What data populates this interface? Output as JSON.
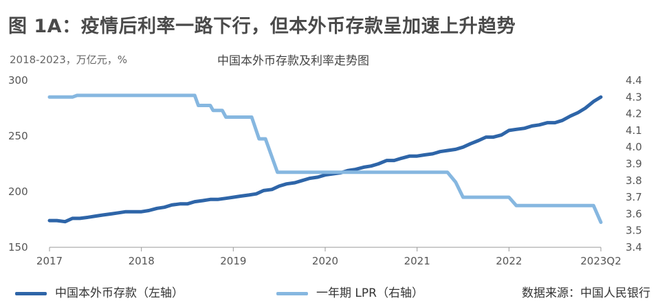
{
  "header": {
    "title": "图 1A：疫情后利率一路下行，但本外币存款呈加速上升趋势",
    "unit_note": "2018-2023，万亿元，%"
  },
  "chart_data": {
    "type": "line",
    "title": "中国本外币存款及利率走势图",
    "x_labels": [
      "2017",
      "2018",
      "2019",
      "2020",
      "2021",
      "2022",
      "2023Q2"
    ],
    "y_left": {
      "ticks": [
        150,
        200,
        250,
        300
      ],
      "range": [
        150,
        300
      ]
    },
    "y_right": {
      "ticks": [
        3.4,
        3.5,
        3.6,
        3.7,
        3.8,
        3.9,
        4.0,
        4.1,
        4.2,
        4.3,
        4.4
      ],
      "range": [
        3.4,
        4.4
      ]
    },
    "series": [
      {
        "name": "中国本外币存款（左轴）",
        "axis": "left",
        "color": "#2e65a8",
        "x": [
          2017.0,
          2017.08,
          2017.17,
          2017.25,
          2017.33,
          2017.42,
          2017.5,
          2017.58,
          2017.67,
          2017.75,
          2017.83,
          2017.92,
          2018.0,
          2018.08,
          2018.17,
          2018.25,
          2018.33,
          2018.42,
          2018.5,
          2018.58,
          2018.67,
          2018.75,
          2018.83,
          2018.92,
          2019.0,
          2019.08,
          2019.17,
          2019.25,
          2019.33,
          2019.42,
          2019.5,
          2019.58,
          2019.67,
          2019.75,
          2019.83,
          2019.92,
          2020.0,
          2020.08,
          2020.17,
          2020.25,
          2020.33,
          2020.42,
          2020.5,
          2020.58,
          2020.67,
          2020.75,
          2020.83,
          2020.92,
          2021.0,
          2021.08,
          2021.17,
          2021.25,
          2021.33,
          2021.42,
          2021.5,
          2021.58,
          2021.67,
          2021.75,
          2021.83,
          2021.92,
          2022.0,
          2022.08,
          2022.17,
          2022.25,
          2022.33,
          2022.42,
          2022.5,
          2022.58,
          2022.67,
          2022.75,
          2022.83,
          2022.92,
          2023.0
        ],
        "values": [
          174,
          174,
          173,
          176,
          176,
          177,
          178,
          179,
          180,
          181,
          182,
          182,
          182,
          183,
          185,
          186,
          188,
          189,
          189,
          191,
          192,
          193,
          193,
          194,
          195,
          196,
          197,
          198,
          201,
          202,
          205,
          207,
          208,
          210,
          212,
          213,
          215,
          216,
          217,
          219,
          220,
          222,
          223,
          225,
          228,
          228,
          230,
          232,
          232,
          233,
          234,
          236,
          237,
          238,
          240,
          243,
          246,
          249,
          249,
          251,
          255,
          256,
          257,
          259,
          260,
          262,
          262,
          264,
          268,
          271,
          275,
          281,
          285
        ]
      },
      {
        "name": "一年期 LPR（右轴）",
        "axis": "right",
        "color": "#86b7e0",
        "x": [
          2017.0,
          2017.25,
          2017.3,
          2018.58,
          2018.62,
          2018.75,
          2018.78,
          2018.88,
          2018.92,
          2019.0,
          2019.2,
          2019.28,
          2019.35,
          2019.48,
          2019.55,
          2021.33,
          2021.42,
          2021.5,
          2021.58,
          2022.0,
          2022.08,
          2022.88,
          2022.92,
          2023.0
        ],
        "values": [
          4.3,
          4.3,
          4.31,
          4.31,
          4.25,
          4.25,
          4.22,
          4.22,
          4.18,
          4.18,
          4.18,
          4.05,
          4.05,
          3.85,
          3.85,
          3.85,
          3.79,
          3.7,
          3.7,
          3.7,
          3.65,
          3.65,
          3.65,
          3.55
        ]
      }
    ]
  },
  "legend": {
    "items": [
      {
        "label": "中国本外币存款（左轴）",
        "color": "#2e65a8"
      },
      {
        "label": "一年期 LPR（右轴）",
        "color": "#86b7e0"
      }
    ]
  },
  "source": "数据来源：中国人民银行"
}
